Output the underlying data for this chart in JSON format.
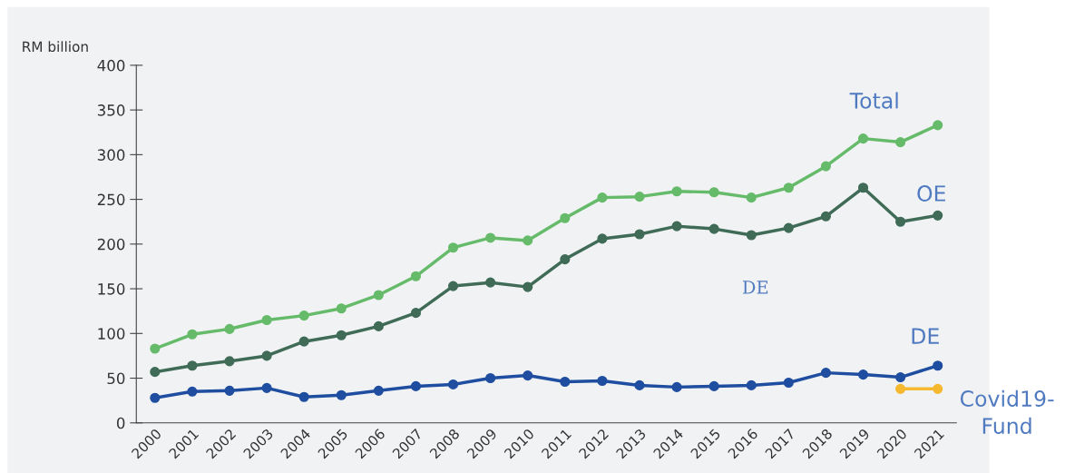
{
  "chart_data": {
    "type": "line",
    "ylabel": "RM billion",
    "categories": [
      "2000",
      "2001",
      "2002",
      "2003",
      "2004",
      "2005",
      "2006",
      "2007",
      "2008",
      "2009",
      "2010",
      "2011",
      "2012",
      "2013",
      "2014",
      "2015",
      "2016",
      "2017",
      "2018",
      "2019",
      "2020",
      "2021"
    ],
    "series": [
      {
        "name": "Total",
        "color": "#66bb6a",
        "values": [
          83,
          99,
          105,
          115,
          120,
          128,
          143,
          164,
          196,
          207,
          204,
          229,
          252,
          253,
          259,
          258,
          252,
          263,
          287,
          318,
          314,
          333
        ]
      },
      {
        "name": "OE",
        "color": "#3f6b57",
        "values": [
          57,
          64,
          69,
          75,
          91,
          98,
          108,
          123,
          153,
          157,
          152,
          183,
          206,
          211,
          220,
          217,
          210,
          218,
          231,
          263,
          225,
          232
        ]
      },
      {
        "name": "DE",
        "color": "#1f4ea0",
        "values": [
          28,
          35,
          36,
          39,
          29,
          31,
          36,
          41,
          43,
          50,
          53,
          46,
          47,
          42,
          40,
          41,
          42,
          45,
          56,
          54,
          51,
          64
        ]
      },
      {
        "name": "Covid19-\nFund",
        "color": "#f5b82e",
        "values": [
          null,
          null,
          null,
          null,
          null,
          null,
          null,
          null,
          null,
          null,
          null,
          null,
          null,
          null,
          null,
          null,
          null,
          null,
          null,
          null,
          38,
          38
        ]
      }
    ],
    "annotations": [
      "DE"
    ],
    "ylim": [
      0,
      400
    ],
    "yticks": [
      0,
      50,
      100,
      150,
      200,
      250,
      300,
      350,
      400
    ],
    "marker": "circle",
    "line_style": "solid",
    "grid": false,
    "legend": false
  }
}
